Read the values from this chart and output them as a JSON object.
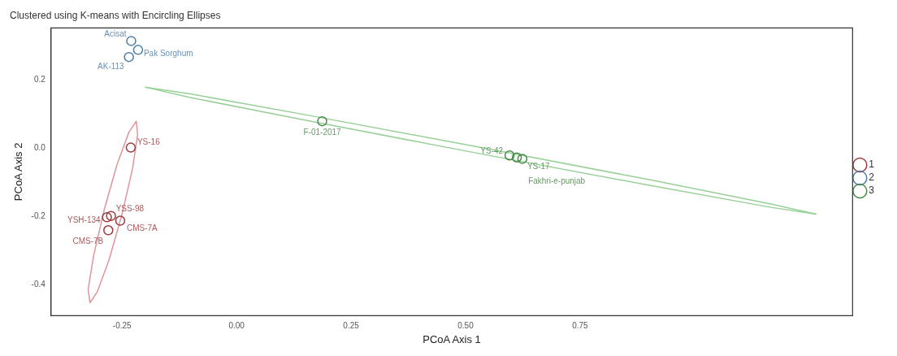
{
  "chart_data": {
    "type": "scatter",
    "title": "Clustered using K-means with Encircling Ellipses",
    "xlabel": "PCoA Axis 1",
    "ylabel": "PCoA Axis 2",
    "xlim": [
      -0.405,
      1.345
    ],
    "ylim": [
      -0.49,
      0.352
    ],
    "xticks": [
      {
        "value": -0.25,
        "label": "-0.25"
      },
      {
        "value": 0,
        "label": "0.00"
      },
      {
        "value": 0.25,
        "label": "0.25"
      },
      {
        "value": 0.5,
        "label": "0.50"
      },
      {
        "value": 0.75,
        "label": "0.75"
      }
    ],
    "yticks": [
      {
        "value": -0.4,
        "label": "-0.4"
      },
      {
        "value": -0.2,
        "label": "-0.2"
      },
      {
        "value": 0,
        "label": "0.0"
      },
      0.2
    ],
    "grid": false,
    "legend": "right",
    "marker": "circle",
    "series": [
      {
        "name": "1",
        "type": "scatter",
        "color": "#9e3a3e",
        "x": [
          -0.231,
          -0.274,
          -0.283,
          -0.254,
          -0.28
        ],
        "values": [
          0.002,
          -0.198,
          -0.202,
          -0.212,
          -0.24
        ],
        "value_labels": [
          "YS-16",
          "YSS-98",
          "YSH-134",
          "CMS-7A",
          "CMS-7B"
        ]
      },
      {
        "name": "2",
        "type": "scatter",
        "color": "#4f7fa8",
        "x": [
          -0.23,
          -0.215,
          -0.235
        ],
        "values": [
          0.314,
          0.288,
          0.267
        ],
        "value_labels": [
          "Acisat",
          "Pak Sorghum",
          "AK-113"
        ]
      },
      {
        "name": "3",
        "type": "scatter",
        "color": "#4a8a4a",
        "x": [
          0.187,
          0.596,
          0.624,
          0.612
        ],
        "values": [
          0.079,
          -0.021,
          -0.031,
          -0.027
        ],
        "value_labels": [
          "F-01-2017",
          "YS-42",
          "YS-17",
          "Fakhri-e-punjab"
        ]
      },
      {
        "type": "line",
        "marker": "none",
        "color": "#e0959a",
        "x": [
          -0.324,
          -0.312,
          -0.289,
          -0.261,
          -0.235,
          -0.219,
          -0.216,
          -0.27,
          -0.324,
          -0.32,
          -0.304,
          -0.278,
          -0.25,
          -0.227,
          -0.216
        ],
        "values": [
          -0.413,
          -0.314,
          -0.18,
          -0.048,
          0.047,
          0.079,
          0.04,
          null,
          -0.413,
          -0.452,
          -0.42,
          -0.325,
          -0.193,
          -0.059,
          0.04
        ]
      },
      {
        "type": "line",
        "marker": "none",
        "color": "#98d098",
        "x": [
          -0.2,
          -0.101,
          0.167,
          0.534,
          0.901,
          1.169,
          1.266
        ],
        "values": [
          0.179,
          0.159,
          0.094,
          0.002,
          -0.092,
          -0.164,
          -0.193
        ]
      },
      {
        "type": "line",
        "marker": "none",
        "color": "#98d098",
        "x": [
          -0.2,
          -0.103,
          0.165,
          0.532,
          0.899,
          1.167,
          1.266
        ],
        "values": [
          0.179,
          0.149,
          0.078,
          -0.016,
          -0.108,
          -0.173,
          -0.193
        ]
      }
    ]
  }
}
